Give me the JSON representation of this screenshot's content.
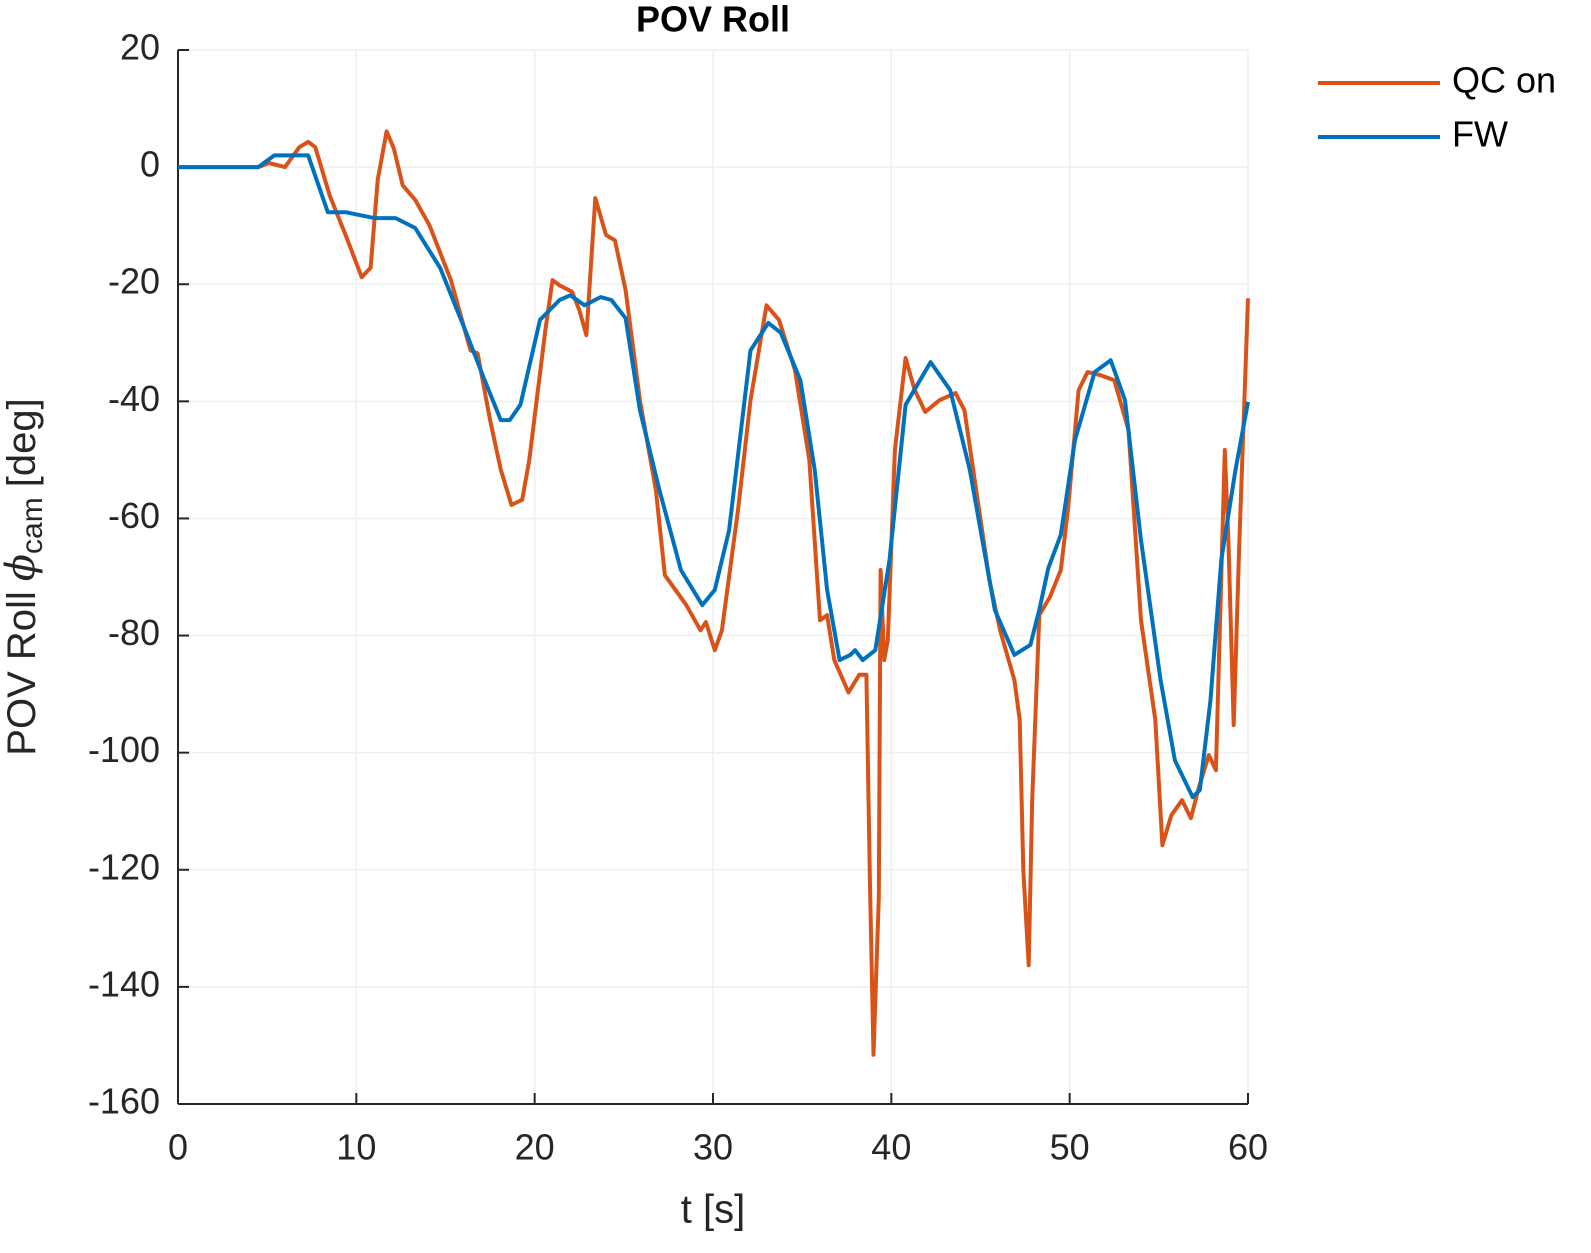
{
  "chart_data": {
    "type": "line",
    "title": "POV Roll",
    "xlabel": "t [s]",
    "ylabel": [
      "POV Roll",
      "ϕ",
      "cam",
      "[deg]"
    ],
    "xlim": [
      0,
      60
    ],
    "ylim": [
      -160,
      20
    ],
    "xticks": [
      0,
      10,
      20,
      30,
      40,
      50,
      60
    ],
    "yticks": [
      -160,
      -140,
      -120,
      -100,
      -80,
      -60,
      -40,
      -20,
      0,
      20
    ],
    "grid": true,
    "legend": "outside-top-right",
    "series": [
      {
        "name": "QC on",
        "color": "#d95319",
        "x": [
          0,
          4.5,
          5.1,
          6,
          6.8,
          7.3,
          7.7,
          8.5,
          9.4,
          10.3,
          10.8,
          11.2,
          11.7,
          12.1,
          12.6,
          13.3,
          14.1,
          15.3,
          16.4,
          16.8,
          17.5,
          18.1,
          18.7,
          19.3,
          19.7,
          20.6,
          21,
          21.4,
          22.1,
          22.5,
          22.9,
          23.4,
          24,
          24.5,
          25.1,
          25.9,
          26.8,
          27.3,
          28.5,
          29.3,
          29.6,
          30.1,
          30.5,
          31.4,
          32.1,
          33,
          33.7,
          34.6,
          35.4,
          36,
          36.4,
          36.8,
          37.6,
          38.2,
          38.6,
          38.8,
          39,
          39.3,
          39.4,
          39.6,
          39.8,
          40.2,
          40.8,
          41.3,
          41.9,
          42.7,
          43.6,
          44.1,
          45.5,
          46.1,
          46.9,
          47.2,
          47.4,
          47.7,
          47.9,
          48.3,
          48.9,
          49.5,
          49.9,
          50.5,
          51,
          51.7,
          52.5,
          53.3,
          54,
          54.8,
          55.2,
          55.7,
          56.3,
          56.8,
          57.2,
          57.8,
          58.2,
          58.7,
          58.9,
          59.2,
          59.5,
          60
        ],
        "values": [
          0,
          0,
          0.7,
          0,
          3.4,
          4.3,
          3.4,
          -4.8,
          -11.6,
          -18.8,
          -17.2,
          -2.2,
          6.1,
          3.2,
          -3.1,
          -5.6,
          -9.9,
          -19.3,
          -31.3,
          -31.8,
          -43.2,
          -51.7,
          -57.7,
          -56.8,
          -50,
          -27.8,
          -19.3,
          -20.2,
          -21.3,
          -24.4,
          -28.7,
          -5.3,
          -11.6,
          -12.5,
          -21,
          -39.8,
          -55.2,
          -69.7,
          -74.8,
          -79.1,
          -77.7,
          -82.5,
          -79.1,
          -58.6,
          -39.8,
          -23.6,
          -26.1,
          -34.7,
          -50,
          -77.4,
          -76.5,
          -84.2,
          -89.7,
          -86.7,
          -86.7,
          -121.8,
          -151.6,
          -124.8,
          -68.8,
          -84.2,
          -80.8,
          -48.3,
          -32.6,
          -38,
          -41.8,
          -39.8,
          -38.6,
          -41.5,
          -70.5,
          -79.1,
          -87.6,
          -94.4,
          -120,
          -136.3,
          -108.1,
          -76.5,
          -73.4,
          -68.8,
          -58.6,
          -38.1,
          -35,
          -35.5,
          -36.4,
          -44.9,
          -77.4,
          -94.4,
          -115.8,
          -110.7,
          -108.1,
          -111.2,
          -106.4,
          -100.4,
          -103,
          -48.3,
          -63.7,
          -95.3,
          -65.3,
          -22.4
        ]
      },
      {
        "name": "FW",
        "color": "#0072bd",
        "x": [
          0,
          4.5,
          5.4,
          7.3,
          8.4,
          9.4,
          11,
          12.2,
          13.3,
          14.7,
          16.1,
          17.2,
          18.1,
          18.6,
          19.2,
          20.3,
          21.4,
          22,
          22.8,
          23.7,
          24.3,
          25.1,
          25.9,
          27,
          28.2,
          29.4,
          30.1,
          30.9,
          32.1,
          33.1,
          33.8,
          34.9,
          35.7,
          36.4,
          37.1,
          37.7,
          37.97,
          38.4,
          39.1,
          39.9,
          40.8,
          42.2,
          43.3,
          44.4,
          45.8,
          46.9,
          47.8,
          48.3,
          48.8,
          49.5,
          50.3,
          51.4,
          52.3,
          53.1,
          54,
          55.1,
          55.9,
          56.9,
          57.3,
          57.9,
          58.5,
          59.3,
          60
        ],
        "values": [
          0,
          0,
          2,
          2,
          -7.7,
          -7.7,
          -8.7,
          -8.7,
          -10.4,
          -17.2,
          -27.8,
          -36.4,
          -43.2,
          -43.2,
          -40.6,
          -26.1,
          -22.7,
          -21.9,
          -23.6,
          -22.2,
          -22.7,
          -25.8,
          -41.5,
          -55.2,
          -68.8,
          -74.8,
          -72.2,
          -62,
          -31.3,
          -26.6,
          -28.3,
          -36.4,
          -51.7,
          -72.2,
          -84.2,
          -83.3,
          -82.5,
          -84.2,
          -82.5,
          -67.1,
          -40.6,
          -33.3,
          -38.1,
          -51.7,
          -75.6,
          -83.3,
          -81.6,
          -75.6,
          -68.5,
          -62.8,
          -46.6,
          -35,
          -33,
          -39.8,
          -63.7,
          -87.6,
          -101.3,
          -107.6,
          -106.4,
          -91,
          -67.1,
          -51.7,
          -40.1
        ]
      }
    ]
  }
}
